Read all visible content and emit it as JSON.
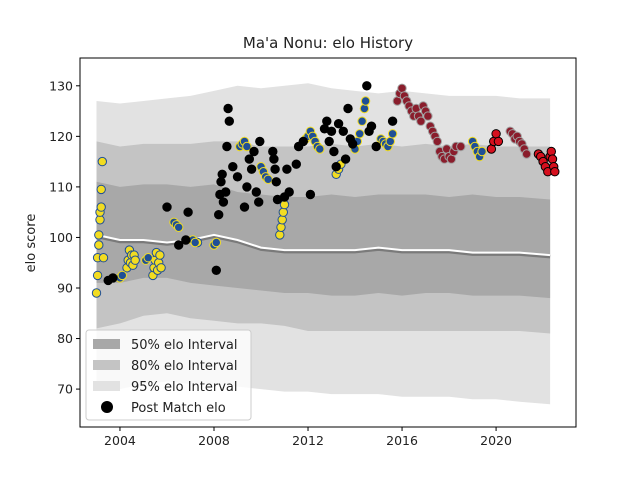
{
  "chart_data": {
    "type": "scatter",
    "title": "Ma'a Nonu: elo History",
    "xlabel": "",
    "ylabel": "elo score",
    "xlim": [
      2002.3,
      2023.4
    ],
    "ylim": [
      62.5,
      135.5
    ],
    "x_ticks": [
      {
        "value": 2004,
        "label": "2004"
      },
      {
        "value": 2008,
        "label": "2008"
      },
      {
        "value": 2012,
        "label": "2012"
      },
      {
        "value": 2016,
        "label": "2016"
      },
      {
        "value": 2020,
        "label": "2020"
      }
    ],
    "y_ticks": [
      {
        "value": 70,
        "label": "70"
      },
      {
        "value": 80,
        "label": "80"
      },
      {
        "value": 90,
        "label": "90"
      },
      {
        "value": 100,
        "label": "100"
      },
      {
        "value": 110,
        "label": "110"
      },
      {
        "value": 120,
        "label": "120"
      },
      {
        "value": 130,
        "label": "130"
      }
    ],
    "grid": false,
    "legend_position": "lower-left",
    "legend": [
      {
        "label": "50% elo Interval",
        "type": "patch",
        "color": "#a8a8a8"
      },
      {
        "label": "80% elo Interval",
        "type": "patch",
        "color": "#c4c4c4"
      },
      {
        "label": "95% elo Interval",
        "type": "patch",
        "color": "#e2e2e2"
      },
      {
        "label": "Post Match elo",
        "type": "marker",
        "color": "#000000"
      }
    ],
    "colors": {
      "band50": "#a8a8a8",
      "band80": "#c4c4c4",
      "band95": "#e2e2e2",
      "median_line": "#ffffff",
      "median_shadow": "#7a7a7a",
      "hurricanes_face": "#f2dc22",
      "blues_face": "#1f4f96",
      "other_face": "#000000",
      "crusaders_face": "#d6101e",
      "late_face": "#8a1d2c",
      "edge_blue": "#1f4f96",
      "edge_gold": "#d8b22a"
    },
    "bands": {
      "x": [
        2003.0,
        2004.0,
        2005.0,
        2006.0,
        2007.0,
        2008.0,
        2009.0,
        2010.0,
        2011.0,
        2012.0,
        2013.0,
        2014.0,
        2015.0,
        2016.0,
        2017.0,
        2018.0,
        2019.0,
        2020.0,
        2021.0,
        2022.3
      ],
      "median": [
        100.5,
        99.5,
        99.5,
        99,
        99.5,
        100.5,
        99.5,
        98,
        97.5,
        97.5,
        97.5,
        97.5,
        98,
        97.5,
        97.5,
        97.5,
        97,
        97,
        97,
        96.5
      ],
      "lo50": [
        91,
        91,
        92,
        92,
        91,
        90.5,
        90,
        89.5,
        89,
        89,
        88.5,
        88.5,
        89,
        88.5,
        89,
        89,
        88.5,
        88.5,
        88.5,
        88
      ],
      "hi50": [
        111,
        110,
        110.5,
        110.5,
        110,
        110.5,
        109,
        108.5,
        108,
        108,
        108.5,
        108,
        108.5,
        108.5,
        108.5,
        108,
        108.5,
        108,
        108,
        107.5
      ],
      "lo80": [
        82,
        83,
        84.5,
        85,
        84,
        83.5,
        83,
        83,
        82.5,
        81.5,
        81.5,
        81.5,
        81.5,
        81.5,
        81.5,
        81.5,
        81.5,
        81.5,
        81.5,
        81
      ],
      "hi80": [
        119,
        118,
        118.5,
        118.5,
        118.5,
        119,
        119,
        118,
        118,
        118,
        118.5,
        118,
        118.5,
        118,
        118.5,
        118,
        118.5,
        118,
        118,
        118
      ],
      "lo95": [
        70,
        70,
        71,
        71.5,
        71,
        71,
        70.5,
        70,
        69.5,
        69.5,
        69,
        69,
        69,
        68.5,
        68.5,
        68.5,
        68,
        68,
        67.5,
        67
      ],
      "hi95": [
        127,
        126.5,
        127,
        127.5,
        128,
        129,
        130,
        129.5,
        130,
        130.5,
        129.5,
        129,
        128.5,
        129,
        128.5,
        128,
        128,
        128,
        127.5,
        127.5
      ]
    },
    "series": [
      {
        "name": "",
        "face": "#f2dc22",
        "edge": "#1f4f96",
        "points": [
          [
            2003.0,
            89
          ],
          [
            2003.05,
            92.5
          ],
          [
            2003.05,
            96
          ],
          [
            2003.1,
            98.5
          ],
          [
            2003.1,
            100.5
          ],
          [
            2003.15,
            103.5
          ],
          [
            2003.15,
            105
          ],
          [
            2003.2,
            106
          ],
          [
            2003.2,
            109.5
          ],
          [
            2003.25,
            115
          ],
          [
            2003.3,
            96
          ],
          [
            2004.3,
            94
          ],
          [
            2004.35,
            95.5
          ],
          [
            2004.4,
            97.5
          ],
          [
            2004.45,
            95
          ],
          [
            2004.5,
            96.5
          ],
          [
            2004.55,
            94.5
          ],
          [
            2004.6,
            96.5
          ],
          [
            2004.65,
            95.5
          ],
          [
            2005.4,
            92.5
          ],
          [
            2005.45,
            94
          ],
          [
            2005.5,
            95.5
          ],
          [
            2005.55,
            97
          ],
          [
            2005.6,
            93.5
          ],
          [
            2005.65,
            95
          ],
          [
            2005.7,
            96.5
          ],
          [
            2005.75,
            94
          ],
          [
            2007.3,
            99
          ],
          [
            2010.8,
            100.5
          ],
          [
            2010.85,
            102
          ],
          [
            2010.9,
            103.5
          ],
          [
            2010.95,
            105
          ],
          [
            2011.0,
            106.5
          ],
          [
            2013.2,
            112.5
          ],
          [
            2013.3,
            113.5
          ],
          [
            2013.4,
            114.5
          ]
        ]
      },
      {
        "name": "",
        "face": "#1f4f96",
        "edge": "#f2dc22",
        "points": [
          [
            2004.0,
            92
          ],
          [
            2004.1,
            92.5
          ],
          [
            2005.1,
            95.5
          ],
          [
            2005.2,
            96
          ],
          [
            2006.3,
            103
          ],
          [
            2006.4,
            102.5
          ],
          [
            2006.5,
            102
          ],
          [
            2007.1,
            99.5
          ],
          [
            2007.2,
            99
          ],
          [
            2008.0,
            98.5
          ],
          [
            2008.1,
            99
          ],
          [
            2009.1,
            118
          ],
          [
            2009.2,
            118.5
          ],
          [
            2009.3,
            119
          ],
          [
            2009.4,
            118
          ],
          [
            2010.0,
            114
          ],
          [
            2010.1,
            113
          ],
          [
            2010.2,
            112
          ],
          [
            2010.3,
            111.5
          ],
          [
            2011.9,
            119.5
          ],
          [
            2012.0,
            120
          ],
          [
            2012.1,
            121
          ],
          [
            2012.2,
            120
          ],
          [
            2012.3,
            119
          ],
          [
            2012.4,
            118
          ],
          [
            2012.5,
            117.5
          ],
          [
            2014.0,
            117.5
          ],
          [
            2014.1,
            119
          ],
          [
            2014.2,
            120.5
          ],
          [
            2014.3,
            123
          ],
          [
            2014.4,
            125.5
          ],
          [
            2014.45,
            127
          ],
          [
            2015.1,
            119.5
          ],
          [
            2015.2,
            119
          ],
          [
            2015.3,
            118.5
          ],
          [
            2015.4,
            118
          ],
          [
            2015.5,
            119
          ],
          [
            2015.6,
            120.5
          ],
          [
            2019.0,
            119
          ],
          [
            2019.1,
            118
          ],
          [
            2019.2,
            117
          ],
          [
            2019.3,
            116
          ],
          [
            2019.4,
            117
          ]
        ]
      },
      {
        "name": "",
        "face": "#000000",
        "edge": "#000000",
        "points": [
          [
            2003.5,
            91.5
          ],
          [
            2003.7,
            92
          ],
          [
            2006.0,
            106
          ],
          [
            2006.5,
            98.5
          ],
          [
            2006.9,
            105
          ],
          [
            2006.8,
            99.5
          ],
          [
            2008.1,
            93.5
          ],
          [
            2008.2,
            104.5
          ],
          [
            2008.25,
            108.5
          ],
          [
            2008.3,
            111
          ],
          [
            2008.35,
            112.5
          ],
          [
            2008.4,
            107
          ],
          [
            2008.5,
            109
          ],
          [
            2008.55,
            118
          ],
          [
            2008.6,
            125.5
          ],
          [
            2008.65,
            123
          ],
          [
            2008.8,
            114
          ],
          [
            2009.0,
            112
          ],
          [
            2009.3,
            106
          ],
          [
            2009.4,
            110
          ],
          [
            2009.5,
            115.5
          ],
          [
            2009.6,
            113.5
          ],
          [
            2009.7,
            117
          ],
          [
            2009.8,
            109
          ],
          [
            2009.9,
            107
          ],
          [
            2009.95,
            119
          ],
          [
            2010.5,
            117
          ],
          [
            2010.55,
            115.5
          ],
          [
            2010.6,
            113.5
          ],
          [
            2010.65,
            111
          ],
          [
            2010.7,
            107.5
          ],
          [
            2011.0,
            108
          ],
          [
            2011.1,
            113.5
          ],
          [
            2011.2,
            109
          ],
          [
            2011.5,
            114.5
          ],
          [
            2011.6,
            118
          ],
          [
            2011.8,
            119
          ],
          [
            2012.1,
            108.5
          ],
          [
            2012.7,
            121.5
          ],
          [
            2012.8,
            123
          ],
          [
            2012.9,
            119
          ],
          [
            2013.0,
            121
          ],
          [
            2013.1,
            117
          ],
          [
            2013.2,
            114
          ],
          [
            2013.3,
            122.5
          ],
          [
            2013.5,
            121
          ],
          [
            2013.6,
            115.5
          ],
          [
            2013.7,
            125.5
          ],
          [
            2013.8,
            119.5
          ],
          [
            2013.9,
            118.5
          ],
          [
            2014.5,
            130
          ],
          [
            2014.6,
            121
          ],
          [
            2014.7,
            122
          ],
          [
            2014.9,
            118
          ],
          [
            2015.6,
            123
          ]
        ]
      },
      {
        "name": "",
        "face": "#8a1d2c",
        "edge": "#a0a0a0",
        "points": [
          [
            2015.8,
            127
          ],
          [
            2015.9,
            128.5
          ],
          [
            2016.0,
            129.5
          ],
          [
            2016.1,
            128
          ],
          [
            2016.2,
            127
          ],
          [
            2016.3,
            126
          ],
          [
            2016.4,
            125
          ],
          [
            2016.5,
            124
          ],
          [
            2016.6,
            125.5
          ],
          [
            2016.7,
            124
          ],
          [
            2016.8,
            123
          ],
          [
            2016.9,
            126
          ],
          [
            2017.0,
            125
          ],
          [
            2017.1,
            124
          ],
          [
            2017.2,
            122
          ],
          [
            2017.3,
            121
          ],
          [
            2017.4,
            120
          ],
          [
            2017.5,
            119
          ],
          [
            2017.6,
            117
          ],
          [
            2017.7,
            116
          ],
          [
            2017.8,
            115.5
          ],
          [
            2017.9,
            117.5
          ],
          [
            2018.0,
            116
          ],
          [
            2018.1,
            115.5
          ],
          [
            2018.2,
            117
          ],
          [
            2018.3,
            118
          ],
          [
            2018.5,
            118
          ],
          [
            2020.6,
            121
          ],
          [
            2020.7,
            120.5
          ],
          [
            2020.8,
            119.5
          ],
          [
            2020.9,
            120
          ],
          [
            2021.0,
            119
          ],
          [
            2021.1,
            118.5
          ],
          [
            2021.2,
            117.5
          ],
          [
            2021.3,
            116.5
          ]
        ]
      },
      {
        "name": "",
        "face": "#d6101e",
        "edge": "#000000",
        "points": [
          [
            2019.8,
            117.5
          ],
          [
            2019.9,
            119
          ],
          [
            2020.0,
            120.5
          ],
          [
            2020.1,
            119
          ],
          [
            2021.8,
            116.5
          ],
          [
            2021.9,
            116
          ],
          [
            2022.0,
            115
          ],
          [
            2022.1,
            114
          ],
          [
            2022.2,
            113
          ],
          [
            2022.3,
            116
          ],
          [
            2022.35,
            117
          ],
          [
            2022.4,
            115.5
          ],
          [
            2022.45,
            114
          ],
          [
            2022.5,
            113
          ]
        ]
      }
    ]
  }
}
